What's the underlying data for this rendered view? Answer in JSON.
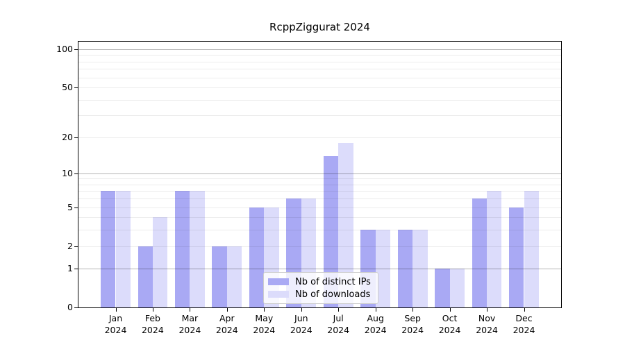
{
  "chart_data": {
    "type": "bar",
    "title": "RcppZiggurat 2024",
    "categories": [
      "Jan",
      "Feb",
      "Mar",
      "Apr",
      "May",
      "Jun",
      "Jul",
      "Aug",
      "Sep",
      "Oct",
      "Nov",
      "Dec"
    ],
    "x_tick_year": "2024",
    "series": [
      {
        "name": "Nb of distinct IPs",
        "color": "#a9a9f4",
        "values": [
          7,
          2,
          7,
          2,
          5,
          6,
          14,
          3,
          3,
          1,
          6,
          5
        ]
      },
      {
        "name": "Nb of downloads",
        "color": "#dcdcfb",
        "values": [
          7,
          4,
          7,
          2,
          5,
          6,
          18,
          3,
          3,
          1,
          7,
          7
        ]
      }
    ],
    "xlabel": "",
    "ylabel": "",
    "yscale": "log1p",
    "ylim": [
      0,
      115
    ],
    "yticks": [
      0,
      1,
      2,
      5,
      10,
      20,
      50,
      100
    ],
    "major_gridlines": [
      1,
      10,
      100
    ],
    "minor_gridlines": [
      2,
      3,
      4,
      5,
      6,
      7,
      8,
      9,
      20,
      30,
      40,
      50,
      60,
      70,
      80,
      90
    ],
    "grid": true,
    "legend_position": "lower center"
  },
  "style_colors": {
    "bar_distinct_ips": "#a9a9f4",
    "bar_downloads": "#dcdcfb",
    "major_grid": "#b3b3b3",
    "minor_grid": "#ececec",
    "axis_frame": "#000000",
    "legend_border": "#cccccc",
    "legend_background": "rgba(255,255,255,0.8)"
  }
}
